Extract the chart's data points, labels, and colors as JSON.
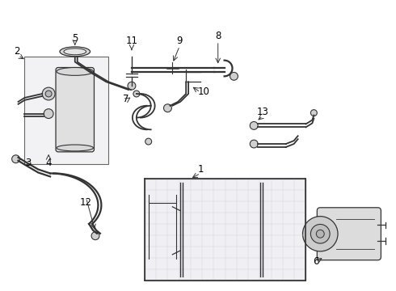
{
  "bg_color": "#ffffff",
  "lc": "#666666",
  "lc_dark": "#333333",
  "fig_width": 4.9,
  "fig_height": 3.6,
  "dpi": 100
}
